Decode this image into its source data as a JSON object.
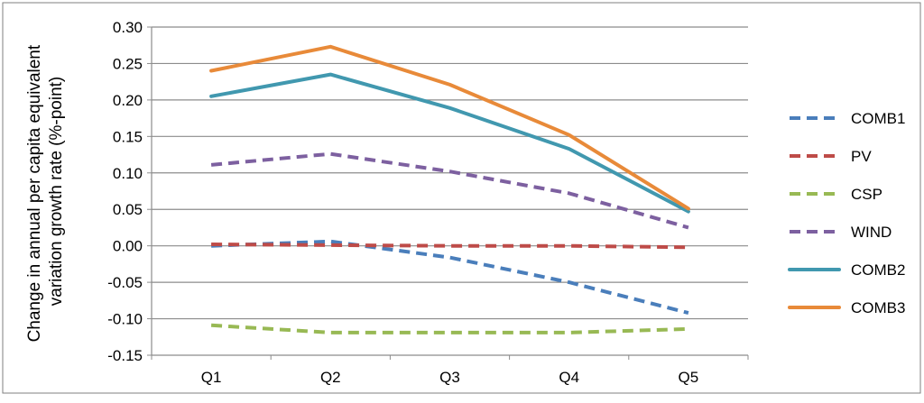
{
  "chart_data": {
    "type": "line",
    "title": "",
    "xlabel": "",
    "ylabel": "Change in annual per capita equivalent variation growth rate (%-point)",
    "ylabel_lines": [
      "Change in annual per capita equivalent",
      "variation growth rate (%-point)"
    ],
    "ylim": [
      -0.15,
      0.3
    ],
    "ytick_step": 0.05,
    "ytick_labels": [
      "-0.15",
      "-0.10",
      "-0.05",
      "0.00",
      "0.05",
      "0.10",
      "0.15",
      "0.20",
      "0.25",
      "0.30"
    ],
    "categories": [
      "Q1",
      "Q2",
      "Q3",
      "Q4",
      "Q5"
    ],
    "grid": true,
    "legend_position": "right",
    "series": [
      {
        "name": "COMB1",
        "style": "dashed",
        "color": "#4A7EBB",
        "values": [
          0.0,
          0.006,
          -0.016,
          -0.05,
          -0.092
        ]
      },
      {
        "name": "PV",
        "style": "dashed",
        "color": "#BE4B48",
        "values": [
          0.002,
          0.001,
          0.0,
          0.0,
          -0.002
        ]
      },
      {
        "name": "CSP",
        "style": "dashed",
        "color": "#98B954",
        "values": [
          -0.109,
          -0.119,
          -0.119,
          -0.119,
          -0.114
        ]
      },
      {
        "name": "WIND",
        "style": "dashed",
        "color": "#7D60A0",
        "values": [
          0.111,
          0.126,
          0.102,
          0.072,
          0.025
        ]
      },
      {
        "name": "COMB2",
        "style": "solid",
        "color": "#4198AF",
        "values": [
          0.205,
          0.235,
          0.189,
          0.133,
          0.047
        ]
      },
      {
        "name": "COMB3",
        "style": "solid",
        "color": "#E88A39",
        "values": [
          0.24,
          0.273,
          0.221,
          0.152,
          0.051
        ]
      }
    ]
  }
}
